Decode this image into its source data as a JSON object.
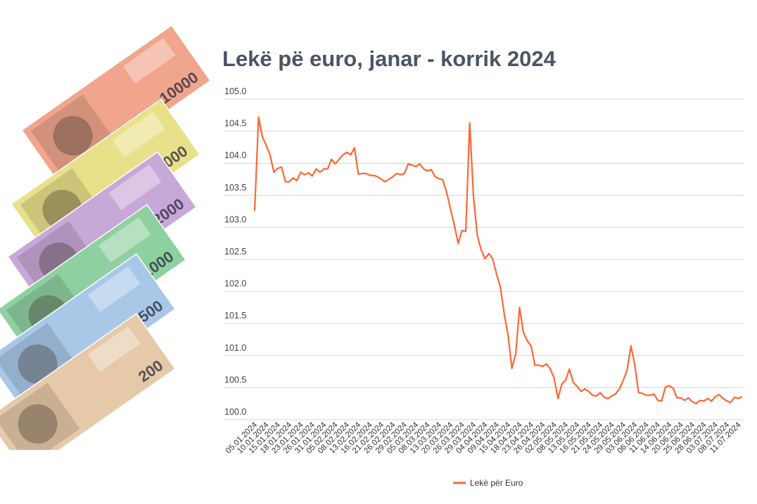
{
  "banknotes": [
    {
      "denomination": "10000",
      "color": "#f0a58c"
    },
    {
      "denomination": "5000",
      "color": "#e9e08a"
    },
    {
      "denomination": "2000",
      "color": "#c8a8d8"
    },
    {
      "denomination": "1000",
      "color": "#8fd0a0"
    },
    {
      "denomination": "500",
      "color": "#a9c8e8"
    },
    {
      "denomination": "200",
      "color": "#e6c9a8"
    }
  ],
  "chart_data": {
    "type": "line",
    "title": "Lekë pë euro, janar - korrik 2024",
    "xlabel": "",
    "ylabel": "",
    "ylim": [
      100.0,
      105.0
    ],
    "yticks": [
      "100.0",
      "100.5",
      "101.0",
      "101.5",
      "102.0",
      "102.5",
      "103.0",
      "103.5",
      "104.0",
      "104.5",
      "105.0"
    ],
    "grid": true,
    "legend_position": "bottom",
    "x_tick_labels": [
      "05.01.2024",
      "10.01.2024",
      "15.01.2024",
      "18.01.2024",
      "23.01.2024",
      "26.01.2024",
      "31.01.2024",
      "05.02.2024",
      "08.02.2024",
      "13.02.2024",
      "16.02.2024",
      "21.02.2024",
      "26.02.2024",
      "29.02.2024",
      "05.03.2024",
      "08.03.2024",
      "13.03.2024",
      "20.03.2024",
      "26.03.2024",
      "29.03.2024",
      "04.04.2024",
      "09.04.2024",
      "15.04.2024",
      "18.04.2024",
      "23.04.2024",
      "26.04.2024",
      "02.05.2024",
      "08.05.2024",
      "13.05.2024",
      "16.05.2024",
      "21.05.2024",
      "24.05.2024",
      "29.05.2024",
      "03.06.2024",
      "06.06.2024",
      "11.06.2024",
      "14.06.2024",
      "20.06.2024",
      "25.06.2024",
      "28.06.2024",
      "03.07.2024",
      "08.07.2024",
      "11.07.2024"
    ],
    "series": [
      {
        "name": "Lekë për Euro",
        "color": "#ff6633",
        "values": [
          103.26,
          104.72,
          104.41,
          104.28,
          104.13,
          103.86,
          103.92,
          103.94,
          103.71,
          103.71,
          103.77,
          103.73,
          103.86,
          103.82,
          103.85,
          103.8,
          103.91,
          103.86,
          103.91,
          103.91,
          104.06,
          103.99,
          104.06,
          104.13,
          104.17,
          104.13,
          104.24,
          103.83,
          103.84,
          103.84,
          103.81,
          103.81,
          103.79,
          103.75,
          103.71,
          103.75,
          103.79,
          103.84,
          103.82,
          103.84,
          103.99,
          103.97,
          103.95,
          103.99,
          103.91,
          103.88,
          103.9,
          103.79,
          103.76,
          103.74,
          103.55,
          103.29,
          103.04,
          102.75,
          102.95,
          102.94,
          104.63,
          103.48,
          102.87,
          102.65,
          102.51,
          102.59,
          102.51,
          102.27,
          102.07,
          101.65,
          101.32,
          100.8,
          101.03,
          101.75,
          101.36,
          101.23,
          101.15,
          100.85,
          100.85,
          100.83,
          100.87,
          100.79,
          100.65,
          100.33,
          100.55,
          100.62,
          100.79,
          100.58,
          100.52,
          100.44,
          100.48,
          100.44,
          100.38,
          100.37,
          100.42,
          100.35,
          100.33,
          100.37,
          100.4,
          100.48,
          100.61,
          100.77,
          101.15,
          100.86,
          100.42,
          100.41,
          100.38,
          100.38,
          100.4,
          100.3,
          100.29,
          100.51,
          100.53,
          100.49,
          100.34,
          100.34,
          100.3,
          100.34,
          100.28,
          100.25,
          100.3,
          100.29,
          100.33,
          100.29,
          100.36,
          100.39,
          100.33,
          100.29,
          100.27,
          100.35,
          100.33,
          100.36
        ]
      }
    ]
  }
}
